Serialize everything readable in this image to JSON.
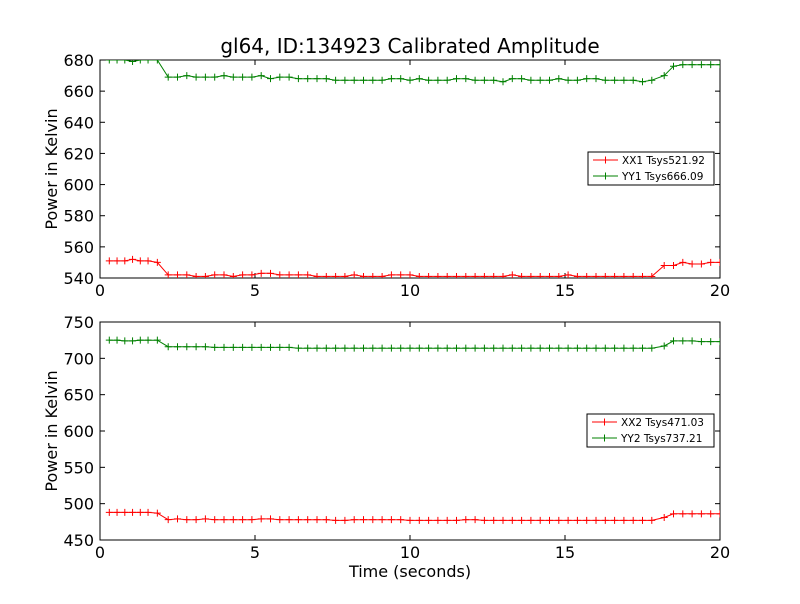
{
  "title": "gl64, ID:134923 Calibrated Amplitude",
  "chart_data": [
    {
      "type": "line",
      "xlabel": "",
      "ylabel": "Power in Kelvin",
      "xlim": [
        0,
        20
      ],
      "ylim": [
        540,
        680
      ],
      "xticks": [
        "0",
        "5",
        "10",
        "15",
        "20"
      ],
      "yticks": [
        "540",
        "560",
        "580",
        "600",
        "620",
        "640",
        "660",
        "680"
      ],
      "legend_position": "center-right",
      "grid": false,
      "x": [
        0.3,
        0.55,
        0.8,
        1.05,
        1.3,
        1.55,
        1.85,
        2.2,
        2.5,
        2.8,
        3.1,
        3.4,
        3.7,
        4.0,
        4.3,
        4.6,
        4.9,
        5.2,
        5.5,
        5.8,
        6.1,
        6.4,
        6.7,
        7.0,
        7.3,
        7.6,
        7.9,
        8.2,
        8.5,
        8.8,
        9.1,
        9.4,
        9.7,
        10.0,
        10.3,
        10.6,
        10.9,
        11.2,
        11.5,
        11.8,
        12.1,
        12.4,
        12.7,
        13.0,
        13.3,
        13.6,
        13.9,
        14.2,
        14.5,
        14.8,
        15.1,
        15.4,
        15.7,
        16.0,
        16.3,
        16.6,
        16.9,
        17.2,
        17.5,
        17.8,
        18.2,
        18.5,
        18.8,
        19.1,
        19.4,
        19.7,
        20.0
      ],
      "series": [
        {
          "name": "XX1 Tsys521.92",
          "color": "#ff0000",
          "values": [
            551,
            551,
            551,
            552,
            551,
            551,
            550,
            542,
            542,
            542,
            541,
            541,
            542,
            542,
            541,
            542,
            542,
            543,
            543,
            542,
            542,
            542,
            542,
            541,
            541,
            541,
            541,
            542,
            541,
            541,
            541,
            542,
            542,
            542,
            541,
            541,
            541,
            541,
            541,
            541,
            541,
            541,
            541,
            541,
            542,
            541,
            541,
            541,
            541,
            541,
            542,
            541,
            541,
            541,
            541,
            541,
            541,
            541,
            541,
            541,
            548,
            548,
            550,
            549,
            549,
            550,
            550
          ]
        },
        {
          "name": "YY1 Tsys666.09",
          "color": "#008000",
          "values": [
            680,
            680,
            680,
            679,
            680,
            680,
            680,
            669,
            669,
            670,
            669,
            669,
            669,
            670,
            669,
            669,
            669,
            670,
            668,
            669,
            669,
            668,
            668,
            668,
            668,
            667,
            667,
            667,
            667,
            667,
            667,
            668,
            668,
            667,
            668,
            667,
            667,
            667,
            668,
            668,
            667,
            667,
            667,
            666,
            668,
            668,
            667,
            667,
            667,
            668,
            667,
            667,
            668,
            668,
            667,
            667,
            667,
            667,
            666,
            667,
            670,
            676,
            677,
            677,
            677,
            677,
            677
          ]
        }
      ]
    },
    {
      "type": "line",
      "xlabel": "Time (seconds)",
      "ylabel": "Power in Kelvin",
      "xlim": [
        0,
        20
      ],
      "ylim": [
        450,
        750
      ],
      "xticks": [
        "0",
        "5",
        "10",
        "15",
        "20"
      ],
      "yticks": [
        "450",
        "500",
        "550",
        "600",
        "650",
        "700",
        "750"
      ],
      "legend_position": "center-right",
      "grid": false,
      "x": [
        0.3,
        0.55,
        0.8,
        1.05,
        1.3,
        1.55,
        1.85,
        2.2,
        2.5,
        2.8,
        3.1,
        3.4,
        3.7,
        4.0,
        4.3,
        4.6,
        4.9,
        5.2,
        5.5,
        5.8,
        6.1,
        6.4,
        6.7,
        7.0,
        7.3,
        7.6,
        7.9,
        8.2,
        8.5,
        8.8,
        9.1,
        9.4,
        9.7,
        10.0,
        10.3,
        10.6,
        10.9,
        11.2,
        11.5,
        11.8,
        12.1,
        12.4,
        12.7,
        13.0,
        13.3,
        13.6,
        13.9,
        14.2,
        14.5,
        14.8,
        15.1,
        15.4,
        15.7,
        16.0,
        16.3,
        16.6,
        16.9,
        17.2,
        17.5,
        17.8,
        18.2,
        18.5,
        18.8,
        19.1,
        19.4,
        19.7,
        20.0
      ],
      "series": [
        {
          "name": "XX2 Tsys471.03",
          "color": "#ff0000",
          "values": [
            488,
            488,
            488,
            488,
            488,
            488,
            487,
            478,
            479,
            478,
            478,
            479,
            478,
            478,
            478,
            478,
            478,
            479,
            479,
            478,
            478,
            478,
            478,
            478,
            478,
            477,
            477,
            478,
            478,
            478,
            478,
            478,
            478,
            477,
            477,
            477,
            477,
            477,
            477,
            478,
            478,
            477,
            477,
            477,
            477,
            477,
            477,
            477,
            477,
            477,
            477,
            477,
            477,
            477,
            477,
            477,
            477,
            477,
            477,
            477,
            481,
            486,
            486,
            486,
            486,
            486,
            486
          ]
        },
        {
          "name": "YY2 Tsys737.21",
          "color": "#008000",
          "values": [
            725,
            725,
            724,
            724,
            725,
            725,
            725,
            716,
            716,
            716,
            716,
            716,
            715,
            715,
            715,
            715,
            715,
            715,
            715,
            715,
            715,
            714,
            714,
            714,
            714,
            714,
            714,
            714,
            714,
            714,
            714,
            714,
            714,
            714,
            714,
            714,
            714,
            714,
            714,
            714,
            714,
            714,
            714,
            714,
            714,
            714,
            714,
            714,
            714,
            714,
            714,
            714,
            714,
            714,
            714,
            714,
            714,
            714,
            714,
            714,
            717,
            724,
            724,
            724,
            723,
            723,
            723
          ]
        }
      ]
    }
  ]
}
